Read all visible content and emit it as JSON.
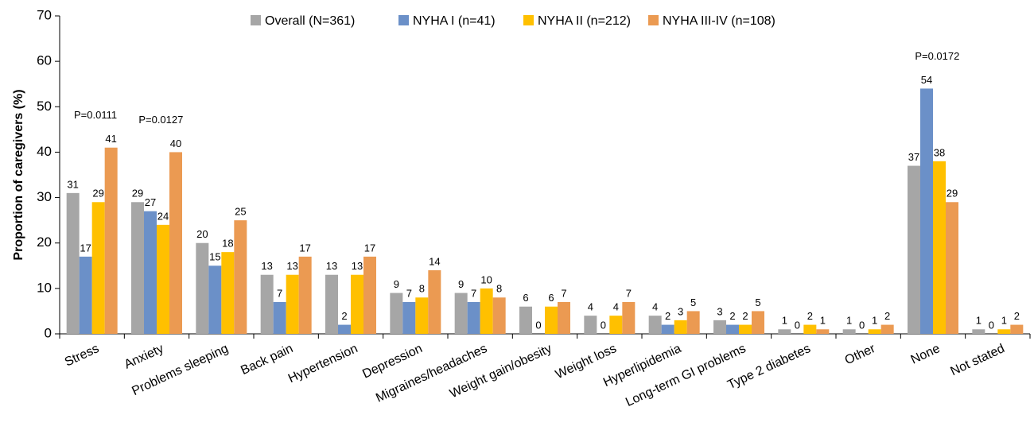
{
  "chart_data": {
    "type": "bar",
    "y_label": "Proportion of caregivers (%)",
    "categories": [
      "Stress",
      "Anxiety",
      "Problems sleeping",
      "Back pain",
      "Hypertension",
      "Depression",
      "Migraines/headaches",
      "Weight gain/obesity",
      "Weight loss",
      "Hyperlipidemia",
      "Long-term GI problems",
      "Type 2 diabetes",
      "Other",
      "None",
      "Not stated"
    ],
    "series": [
      {
        "name": "Overall (N=361)",
        "color": "#a6a6a6",
        "values": [
          31,
          29,
          20,
          13,
          13,
          9,
          9,
          6,
          4,
          4,
          3,
          1,
          1,
          37,
          1
        ]
      },
      {
        "name": "NYHA I (n=41)",
        "color": "#6b90c8",
        "values": [
          17,
          27,
          15,
          7,
          2,
          7,
          7,
          0,
          0,
          2,
          2,
          0,
          0,
          54,
          0
        ]
      },
      {
        "name": "NYHA II (n=212)",
        "color": "#ffc000",
        "values": [
          29,
          24,
          18,
          13,
          13,
          8,
          10,
          6,
          4,
          3,
          2,
          2,
          1,
          38,
          1
        ]
      },
      {
        "name": "NYHA III-IV (n=108)",
        "color": "#eb9a52",
        "values": [
          41,
          40,
          25,
          17,
          17,
          14,
          8,
          7,
          7,
          5,
          5,
          1,
          2,
          29,
          2
        ]
      }
    ],
    "annotations": [
      "P=0.0111",
      "P=0.0127",
      "P=0.0172"
    ],
    "ylim": [
      0,
      70
    ],
    "yticks": [
      0,
      10,
      20,
      30,
      40,
      50,
      60,
      70
    ],
    "grid": false,
    "legend": "top"
  }
}
